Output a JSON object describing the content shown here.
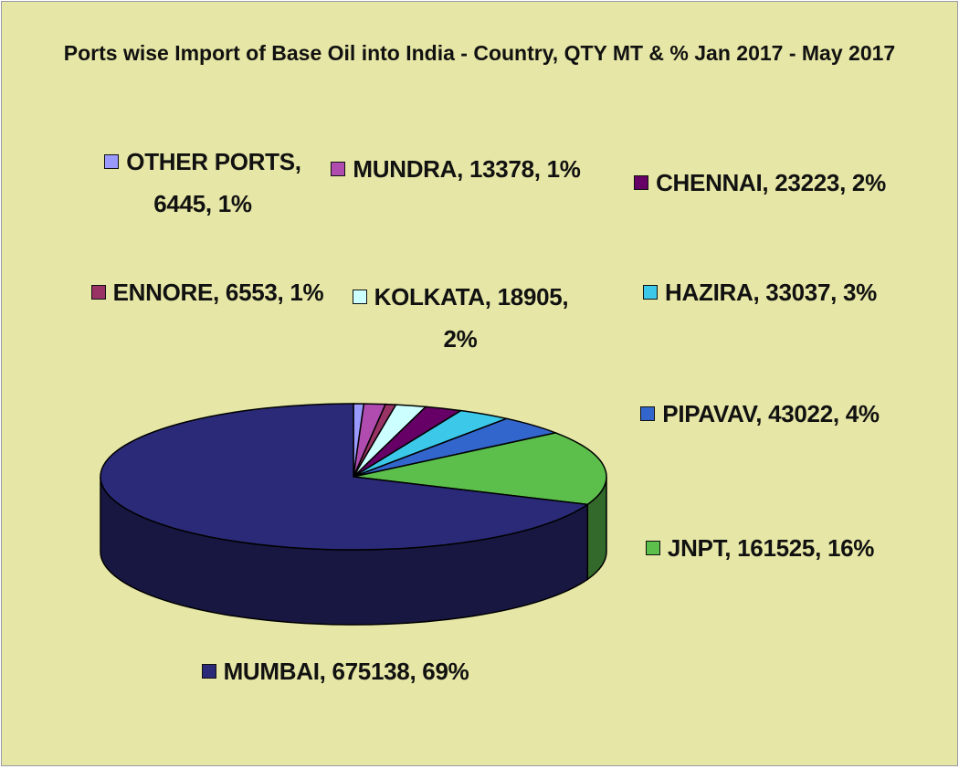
{
  "chart_data": {
    "type": "pie",
    "title": "Ports wise Import of Base Oil into India - Country, QTY MT & % Jan 2017 - May 2017",
    "values": [
      6445,
      13378,
      6553,
      18905,
      23223,
      33037,
      43022,
      161525,
      675138
    ],
    "value_labels": [
      "OTHER PORTS, 6445, 1%",
      "MUNDRA, 13378, 1%",
      "ENNORE, 6553, 1%",
      "KOLKATA, 18905, 2%",
      "CHENNAI, 23223, 2%",
      "HAZIRA, 33037, 3%",
      "PIPAVAV, 43022, 4%",
      "JNPT, 161525, 16%",
      "MUMBAI, 675138, 69%"
    ],
    "colors": [
      "#9999ff",
      "#b04cb0",
      "#993366",
      "#ccffff",
      "#660066",
      "#3cc8e8",
      "#3366cc",
      "#5cbf4c",
      "#2a2a78"
    ]
  }
}
